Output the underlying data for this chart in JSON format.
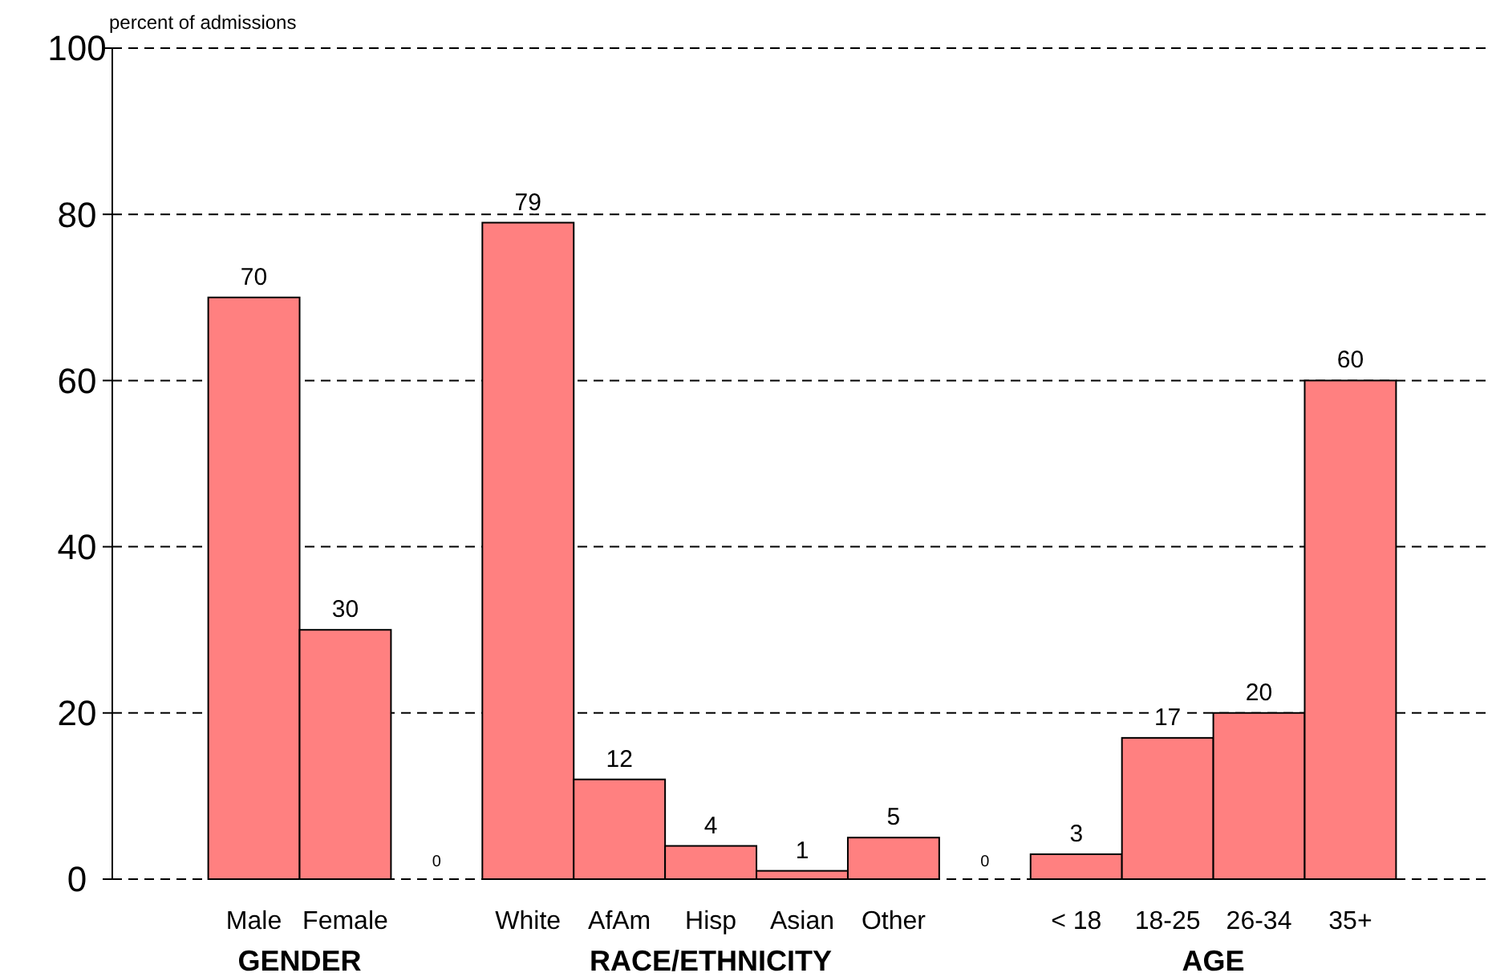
{
  "chart_data": {
    "type": "bar",
    "ylabel": "percent of admissions",
    "categories": [
      "Male",
      "Female",
      null,
      "White",
      "AfAm",
      "Hisp",
      "Asian",
      "Other",
      null,
      "< 18",
      "18-25",
      "26-34",
      "35+"
    ],
    "values": [
      70,
      30,
      0,
      79,
      12,
      4,
      1,
      5,
      0,
      3,
      17,
      20,
      60
    ],
    "value_labels": [
      "70",
      "30",
      "0",
      "79",
      "12",
      "4",
      "1",
      "5",
      "0",
      "3",
      "17",
      "20",
      "60"
    ],
    "color": "#ff8080",
    "ylim": [
      0,
      100
    ],
    "yticks": [
      0,
      20,
      40,
      60,
      80,
      100
    ],
    "grid": "y",
    "annotations": [
      "GENDER",
      "RACE/ETHNICITY",
      "AGE"
    ]
  }
}
